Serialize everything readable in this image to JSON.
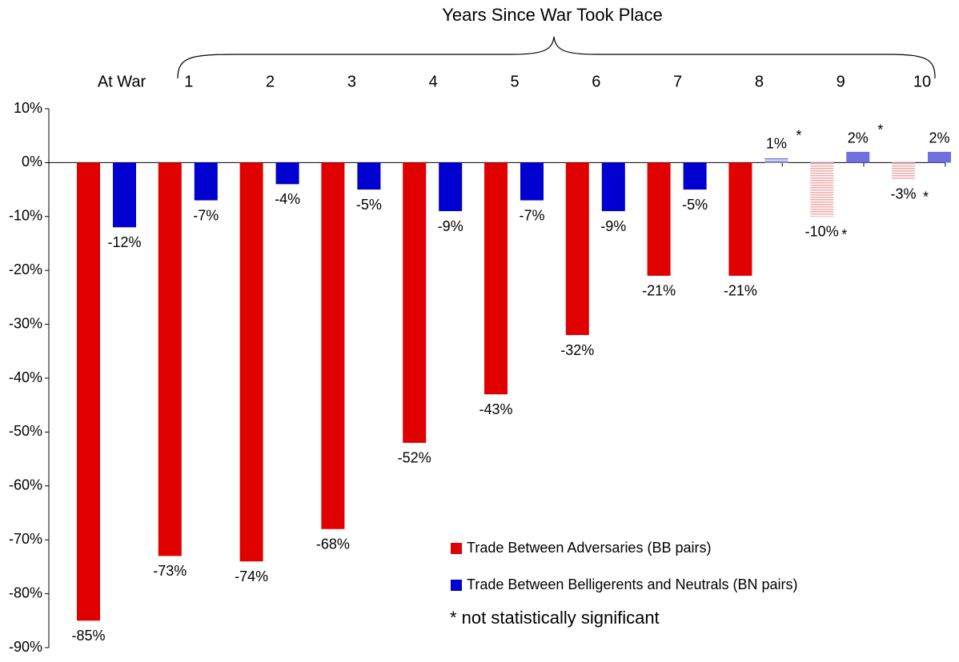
{
  "chart_data": {
    "type": "bar",
    "title": "Years Since War Took Place",
    "categories": [
      "At War",
      "1",
      "2",
      "3",
      "4",
      "5",
      "6",
      "7",
      "8",
      "9",
      "10"
    ],
    "series": [
      {
        "name": "Trade Between Adversaries (BB pairs)",
        "color": "#e00000",
        "faded_color": "#f4a8a8",
        "values": [
          -85,
          -73,
          -74,
          -68,
          -52,
          -43,
          -32,
          -21,
          -21,
          -10,
          -3
        ],
        "value_labels": [
          "-85%",
          "-73%",
          "-74%",
          "-68%",
          "-52%",
          "-43%",
          "-32%",
          "-21%",
          "-21%",
          "-10%",
          "-3%"
        ],
        "markers": [
          null,
          null,
          null,
          null,
          null,
          null,
          null,
          null,
          null,
          "*",
          "*"
        ]
      },
      {
        "name": "Trade Between Belligerents and Neutrals (BN pairs)",
        "color": "#0000d0",
        "faded_color": "#6f6fe0",
        "values": [
          -12,
          -7,
          -4,
          -5,
          -9,
          -7,
          -9,
          -5,
          1,
          2,
          2
        ],
        "value_labels": [
          "-12%",
          "-7%",
          "-4%",
          "-5%",
          "-9%",
          "-7%",
          "-9%",
          "-5%",
          "1%",
          "2%",
          "2%"
        ],
        "markers": [
          null,
          null,
          null,
          null,
          null,
          null,
          null,
          null,
          "*",
          "*",
          "*"
        ]
      }
    ],
    "note": "* not statistically significant",
    "ylim": [
      -90,
      10
    ],
    "yticks": [
      {
        "value": -90,
        "label": "-90%"
      },
      {
        "value": -80,
        "label": "-80%"
      },
      {
        "value": -70,
        "label": "-70%"
      },
      {
        "value": -60,
        "label": "-60%"
      },
      {
        "value": -50,
        "label": "-50%"
      },
      {
        "value": -40,
        "label": "-40%"
      },
      {
        "value": -30,
        "label": "-30%"
      },
      {
        "value": -20,
        "label": "-20%"
      },
      {
        "value": -10,
        "label": "-10%"
      },
      {
        "value": 0,
        "label": "0%"
      },
      {
        "value": 10,
        "label": "10%"
      }
    ]
  }
}
